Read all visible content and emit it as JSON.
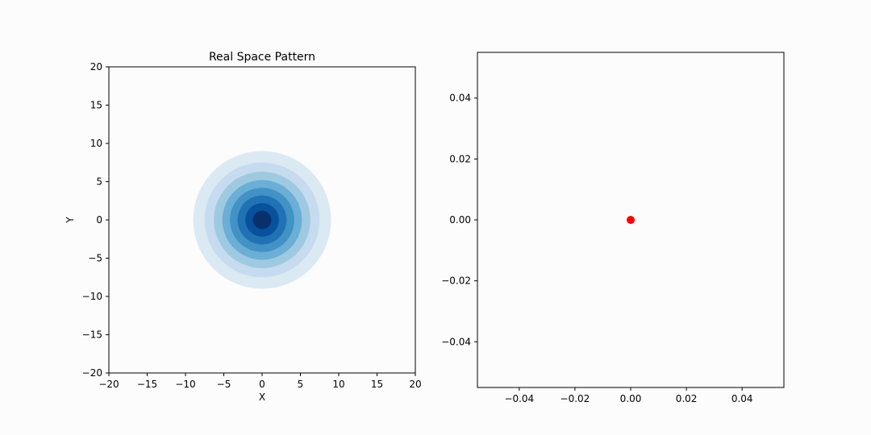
{
  "chart_data": [
    {
      "type": "heatmap",
      "title": "Real Space Pattern",
      "xlabel": "X",
      "ylabel": "Y",
      "xlim": [
        -20,
        20
      ],
      "ylim": [
        -20,
        20
      ],
      "xticks": [
        -20,
        -15,
        -10,
        -5,
        0,
        5,
        10,
        15,
        20
      ],
      "yticks": [
        -20,
        -15,
        -10,
        -5,
        0,
        5,
        10,
        15,
        20
      ],
      "xtick_labels": [
        "−20",
        "−15",
        "−10",
        "−5",
        "0",
        "5",
        "10",
        "15",
        "20"
      ],
      "ytick_labels": [
        "−20",
        "−15",
        "−10",
        "−5",
        "0",
        "5",
        "10",
        "15",
        "20"
      ],
      "grid": false,
      "colormap": "Blues",
      "pattern": {
        "shape": "radial",
        "center": [
          0,
          0
        ],
        "radius": 9,
        "levels": [
          {
            "r": 9.0,
            "color": "#dbe9f3"
          },
          {
            "r": 7.5,
            "color": "#c6dbef"
          },
          {
            "r": 6.3,
            "color": "#9ecae1"
          },
          {
            "r": 5.2,
            "color": "#6baed6"
          },
          {
            "r": 4.2,
            "color": "#4292c6"
          },
          {
            "r": 3.2,
            "color": "#2171b5"
          },
          {
            "r": 2.2,
            "color": "#08519c"
          },
          {
            "r": 1.2,
            "color": "#08306b"
          }
        ]
      }
    },
    {
      "type": "scatter",
      "title": "",
      "xlabel": "",
      "ylabel": "",
      "xlim": [
        -0.055,
        0.055
      ],
      "ylim": [
        -0.055,
        0.055
      ],
      "xticks": [
        -0.04,
        -0.02,
        0.0,
        0.02,
        0.04
      ],
      "yticks": [
        -0.04,
        -0.02,
        0.0,
        0.02,
        0.04
      ],
      "xtick_labels": [
        "−0.04",
        "−0.02",
        "0.00",
        "0.02",
        "0.04"
      ],
      "ytick_labels": [
        "−0.04",
        "−0.02",
        "0.00",
        "0.02",
        "0.04"
      ],
      "grid": false,
      "points": [
        {
          "x": 0.0,
          "y": 0.0,
          "color": "#ff0000"
        }
      ]
    }
  ]
}
